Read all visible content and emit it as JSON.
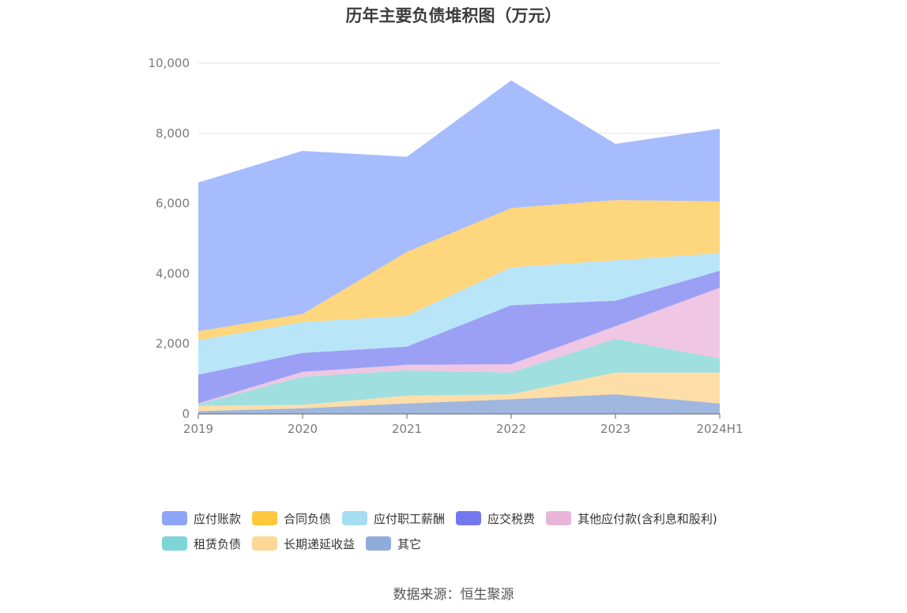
{
  "title": "历年主要负债堆积图（万元）",
  "source": "数据来源：恒生聚源",
  "chart_data": {
    "type": "area",
    "stacked": true,
    "title": "历年主要负债堆积图（万元）",
    "categories": [
      "2019",
      "2020",
      "2021",
      "2022",
      "2023",
      "2024H1"
    ],
    "ylim": [
      0,
      10000
    ],
    "yticks": [
      0,
      2000,
      4000,
      6000,
      8000,
      10000
    ],
    "ytick_labels": [
      "0",
      "2,000",
      "4,000",
      "6,000",
      "8,000",
      "10,000"
    ],
    "grid": true,
    "legend_position": "bottom",
    "series": [
      {
        "name": "其它",
        "color": "#8eaad8",
        "values": [
          80,
          160,
          300,
          420,
          560,
          300
        ]
      },
      {
        "name": "长期递延收益",
        "color": "#fdd89a",
        "values": [
          150,
          100,
          220,
          140,
          620,
          880
        ]
      },
      {
        "name": "租赁负债",
        "color": "#8ed9d9",
        "values": [
          50,
          800,
          720,
          620,
          960,
          400
        ]
      },
      {
        "name": "其他应付款(含利息和股利)",
        "color": "#ecbcdf",
        "values": [
          20,
          140,
          160,
          240,
          360,
          2020
        ]
      },
      {
        "name": "应交税费",
        "color": "#8b8ff2",
        "values": [
          820,
          540,
          520,
          1680,
          730,
          480
        ]
      },
      {
        "name": "应付职工薪酬",
        "color": "#ade1f8",
        "values": [
          980,
          880,
          880,
          1080,
          1150,
          500
        ]
      },
      {
        "name": "合同负债",
        "color": "#fecf66",
        "values": [
          260,
          230,
          1820,
          1690,
          1720,
          1480
        ]
      },
      {
        "name": "应付账款",
        "color": "#98b0fc",
        "values": [
          4240,
          4650,
          2710,
          3640,
          1600,
          2070
        ]
      }
    ],
    "legend_order": [
      "应付账款",
      "合同负债",
      "应付职工薪酬",
      "应交税费",
      "其他应付款(含利息和股利)",
      "租赁负债",
      "长期递延收益",
      "其它"
    ],
    "legend_colors": [
      "#8ca5f8",
      "#fdc83e",
      "#a6ddf5",
      "#7377ee",
      "#e8b5d9",
      "#7fd5d6",
      "#fdd896",
      "#8faddb"
    ]
  }
}
